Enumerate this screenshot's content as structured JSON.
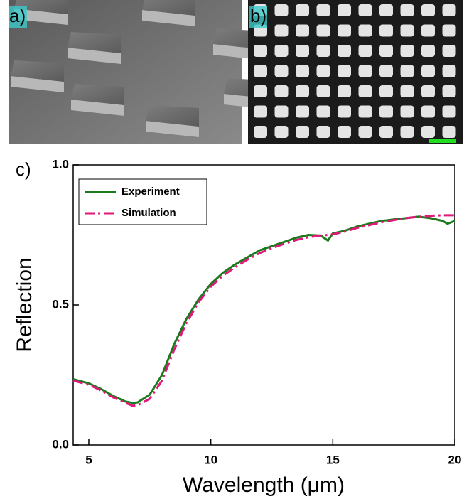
{
  "panel_labels": [
    "a)",
    "b)",
    "c)"
  ],
  "chart_data": {
    "type": "line",
    "xlabel": "Wavelength (μm)",
    "ylabel": "Reflection",
    "x": [
      4.36,
      5,
      5.5,
      6,
      6.5,
      6.8,
      7,
      7.5,
      8,
      8.5,
      9,
      9.5,
      10,
      10.5,
      11,
      11.5,
      12,
      12.5,
      13,
      13.5,
      14,
      14.5,
      14.8,
      15,
      15.5,
      16,
      16.5,
      17,
      17.5,
      18,
      18.5,
      19,
      19.5,
      19.7,
      20
    ],
    "series": [
      {
        "name": "Experiment",
        "color": "#1b7a1b",
        "linestyle": "solid",
        "values": [
          0.235,
          0.22,
          0.2,
          0.175,
          0.155,
          0.15,
          0.152,
          0.18,
          0.25,
          0.36,
          0.45,
          0.52,
          0.575,
          0.615,
          0.645,
          0.67,
          0.695,
          0.71,
          0.725,
          0.74,
          0.75,
          0.748,
          0.73,
          0.755,
          0.765,
          0.78,
          0.79,
          0.8,
          0.805,
          0.81,
          0.815,
          0.81,
          0.8,
          0.79,
          0.8
        ]
      },
      {
        "name": "Simulation",
        "color": "#e0187a",
        "linestyle": "dashdot",
        "values": [
          0.23,
          0.215,
          0.195,
          0.17,
          0.15,
          0.14,
          0.142,
          0.165,
          0.23,
          0.34,
          0.435,
          0.51,
          0.565,
          0.605,
          0.635,
          0.662,
          0.685,
          0.703,
          0.718,
          0.732,
          0.742,
          0.748,
          0.75,
          0.752,
          0.762,
          0.775,
          0.785,
          0.795,
          0.803,
          0.81,
          0.815,
          0.818,
          0.82,
          0.82,
          0.82
        ]
      }
    ],
    "xlim": [
      4.36,
      20
    ],
    "ylim": [
      0,
      1
    ],
    "xticks": [
      5,
      10,
      15,
      20
    ],
    "yticks": [
      {
        "value": 0,
        "label": "0.0"
      },
      {
        "value": 0.5,
        "label": "0.5"
      },
      {
        "value": 1,
        "label": "1.0"
      }
    ],
    "legend": "upper left"
  }
}
